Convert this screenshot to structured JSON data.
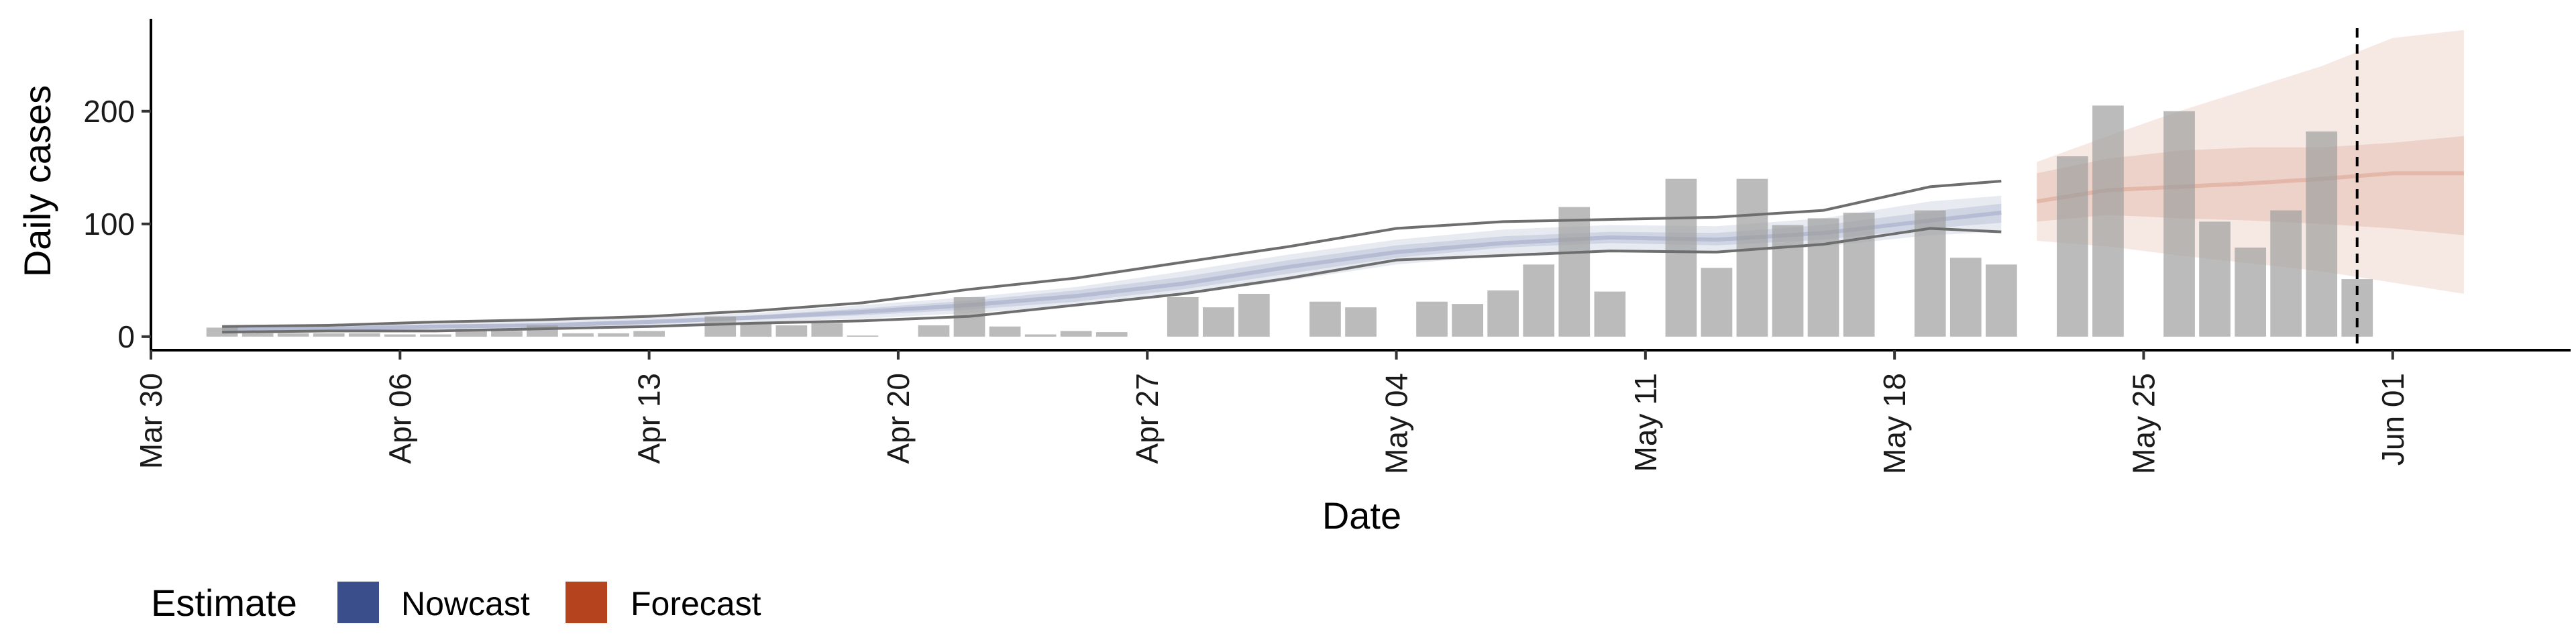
{
  "chart_data": {
    "type": "bar",
    "xlabel": "Date",
    "ylabel": "Daily cases",
    "xlim": [
      "2020-03-30",
      "2020-06-06"
    ],
    "ylim": [
      -12,
      282
    ],
    "y_ticks": [
      0,
      100,
      200
    ],
    "x_ticks": [
      {
        "date": "2020-03-30",
        "label": "Mar 30"
      },
      {
        "date": "2020-04-06",
        "label": "Apr 06"
      },
      {
        "date": "2020-04-13",
        "label": "Apr 13"
      },
      {
        "date": "2020-04-20",
        "label": "Apr 20"
      },
      {
        "date": "2020-04-27",
        "label": "Apr 27"
      },
      {
        "date": "2020-05-04",
        "label": "May 04"
      },
      {
        "date": "2020-05-11",
        "label": "May 11"
      },
      {
        "date": "2020-05-18",
        "label": "May 18"
      },
      {
        "date": "2020-05-25",
        "label": "May 25"
      },
      {
        "date": "2020-06-01",
        "label": "Jun 01"
      }
    ],
    "grid": false,
    "vline_date": "2020-05-31",
    "bars": {
      "color": "#9e9e9e",
      "dates": [
        "2020-04-01",
        "2020-04-02",
        "2020-04-03",
        "2020-04-04",
        "2020-04-05",
        "2020-04-06",
        "2020-04-07",
        "2020-04-08",
        "2020-04-09",
        "2020-04-10",
        "2020-04-11",
        "2020-04-12",
        "2020-04-13",
        "2020-04-14",
        "2020-04-15",
        "2020-04-16",
        "2020-04-17",
        "2020-04-18",
        "2020-04-19",
        "2020-04-20",
        "2020-04-21",
        "2020-04-22",
        "2020-04-23",
        "2020-04-24",
        "2020-04-25",
        "2020-04-26",
        "2020-04-27",
        "2020-04-28",
        "2020-04-29",
        "2020-04-30",
        "2020-05-01",
        "2020-05-02",
        "2020-05-03",
        "2020-05-04",
        "2020-05-05",
        "2020-05-06",
        "2020-05-07",
        "2020-05-08",
        "2020-05-09",
        "2020-05-10",
        "2020-05-11",
        "2020-05-12",
        "2020-05-13",
        "2020-05-14",
        "2020-05-15",
        "2020-05-16",
        "2020-05-17",
        "2020-05-18",
        "2020-05-19",
        "2020-05-20",
        "2020-05-21",
        "2020-05-22",
        "2020-05-23",
        "2020-05-24",
        "2020-05-25",
        "2020-05-26",
        "2020-05-27",
        "2020-05-28",
        "2020-05-29",
        "2020-05-30",
        "2020-05-31"
      ],
      "values": [
        8,
        3,
        3,
        3,
        3,
        2,
        2,
        7,
        5,
        10,
        3,
        3,
        5,
        0,
        18,
        12,
        10,
        12,
        1,
        0,
        10,
        35,
        9,
        2,
        5,
        4,
        0,
        35,
        26,
        38,
        0,
        31,
        26,
        0,
        31,
        29,
        41,
        64,
        115,
        40,
        0,
        140,
        61,
        140,
        99,
        105,
        110,
        0,
        112,
        70,
        64,
        0,
        160,
        205,
        0,
        200,
        102,
        79,
        112,
        182,
        51
      ]
    },
    "series": [
      {
        "name": "Nowcast",
        "color": "#3b4e8c",
        "dates": [
          "2020-04-01",
          "2020-04-04",
          "2020-04-07",
          "2020-04-10",
          "2020-04-13",
          "2020-04-16",
          "2020-04-19",
          "2020-04-22",
          "2020-04-25",
          "2020-04-28",
          "2020-05-01",
          "2020-05-04",
          "2020-05-07",
          "2020-05-10",
          "2020-05-13",
          "2020-05-16",
          "2020-05-19",
          "2020-05-21"
        ],
        "median": [
          6,
          7,
          9,
          10,
          13,
          17,
          22,
          28,
          36,
          47,
          62,
          75,
          83,
          88,
          86,
          92,
          103,
          110
        ],
        "inner_lower": [
          5,
          6,
          8,
          9,
          12,
          15,
          19,
          24,
          31,
          42,
          56,
          70,
          79,
          83,
          81,
          86,
          96,
          101
        ],
        "inner_upper": [
          7,
          8,
          10,
          12,
          15,
          19,
          25,
          32,
          41,
          53,
          68,
          81,
          89,
          93,
          92,
          99,
          111,
          118
        ],
        "outer_lower": [
          4,
          5,
          6,
          8,
          10,
          13,
          16,
          21,
          27,
          37,
          50,
          64,
          72,
          76,
          74,
          80,
          90,
          93
        ],
        "outer_upper": [
          8,
          9,
          12,
          14,
          17,
          21,
          28,
          35,
          44,
          58,
          73,
          86,
          95,
          99,
          98,
          105,
          120,
          125
        ],
        "line_lower": [
          4,
          5,
          5,
          7,
          9,
          12,
          14,
          18,
          28,
          38,
          52,
          68,
          72,
          76,
          75,
          82,
          96,
          93
        ],
        "line_upper": [
          9,
          10,
          13,
          15,
          18,
          23,
          30,
          42,
          52,
          66,
          80,
          96,
          102,
          104,
          106,
          112,
          133,
          138
        ]
      },
      {
        "name": "Forecast",
        "color": "#b5441e",
        "dates": [
          "2020-05-22",
          "2020-05-24",
          "2020-05-26",
          "2020-05-28",
          "2020-05-30",
          "2020-06-01",
          "2020-06-03"
        ],
        "median": [
          120,
          130,
          133,
          136,
          140,
          145,
          145
        ],
        "inner_lower": [
          102,
          108,
          105,
          103,
          100,
          96,
          90
        ],
        "inner_upper": [
          145,
          158,
          165,
          168,
          168,
          172,
          178
        ],
        "outer_lower": [
          85,
          80,
          72,
          65,
          58,
          48,
          38
        ],
        "outer_upper": [
          155,
          178,
          200,
          220,
          240,
          265,
          272
        ]
      }
    ],
    "legend": {
      "title": "Estimate",
      "position": "bottom-left",
      "items": [
        {
          "label": "Nowcast",
          "color": "#3b4e8c"
        },
        {
          "label": "Forecast",
          "color": "#b5441e"
        }
      ]
    }
  }
}
